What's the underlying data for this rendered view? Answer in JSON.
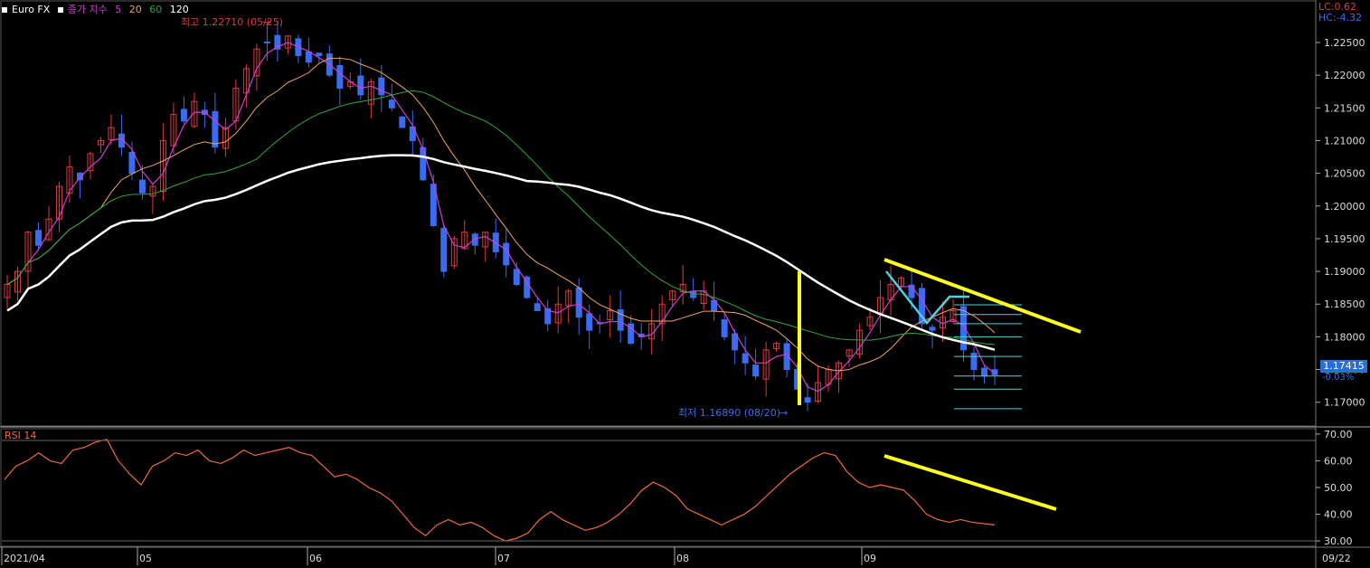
{
  "header": {
    "symbol": "Euro FX",
    "ma_label": "종가 지수",
    "ma_periods": [
      "5",
      "20",
      "60",
      "120"
    ],
    "high_label": "최고 1.22710 (05/25)",
    "low_label": "최저 1.16890 (08/20)",
    "lc": "LC:0.62",
    "hc": "HC:-4.32",
    "current_price": "1.17415",
    "change_pct": "-0.03%"
  },
  "colors": {
    "up": "#e03a3a",
    "down": "#3a6cf0",
    "ma5": "#d23bd6",
    "ma20": "#f0a35a",
    "ma60": "#2fa83a",
    "ma120": "#ffffff",
    "trend": "#ffff1e",
    "fib": "#4fd0e0",
    "rsi": "#f06a3a"
  },
  "chart_data": [
    {
      "type": "candlestick",
      "title": "Euro FX",
      "yticks": [
        "1.22500",
        "1.22000",
        "1.21500",
        "1.21000",
        "1.20500",
        "1.20000",
        "1.19500",
        "1.19000",
        "1.18500",
        "1.18000",
        "1.17500",
        "1.17000"
      ],
      "ylim": [
        1.1665,
        1.2315
      ],
      "xticks": [
        "2021/04",
        "05",
        "06",
        "07",
        "08",
        "09",
        "09/22"
      ],
      "grid": false,
      "high": {
        "value": 1.2271,
        "date": "05/25"
      },
      "low": {
        "value": 1.1689,
        "date": "08/20"
      },
      "close_path": [
        1.188,
        1.19,
        1.196,
        1.194,
        1.198,
        1.203,
        1.206,
        1.204,
        1.208,
        1.21,
        1.212,
        1.209,
        1.205,
        1.202,
        1.203,
        1.21,
        1.214,
        1.213,
        1.216,
        1.214,
        1.209,
        1.212,
        1.218,
        1.221,
        1.224,
        1.225,
        1.224,
        1.226,
        1.223,
        1.222,
        1.223,
        1.22,
        1.218,
        1.219,
        1.217,
        1.219,
        1.217,
        1.215,
        1.212,
        1.21,
        1.204,
        1.197,
        1.19,
        1.195,
        1.196,
        1.194,
        1.196,
        1.193,
        1.191,
        1.188,
        1.186,
        1.184,
        1.182,
        1.185,
        1.187,
        1.183,
        1.181,
        1.182,
        1.184,
        1.181,
        1.179,
        1.18,
        1.182,
        1.185,
        1.187,
        1.188,
        1.186,
        1.187,
        1.184,
        1.18,
        1.178,
        1.176,
        1.174,
        1.178,
        1.179,
        1.175,
        1.172,
        1.17,
        1.173,
        1.175,
        1.176,
        1.178,
        1.181,
        1.183,
        1.186,
        1.188,
        1.189,
        1.186,
        1.182,
        1.181,
        1.183,
        1.184,
        1.178,
        1.175,
        1.174,
        1.1742
      ],
      "series": [
        {
          "name": "5",
          "color": "#d23bd6"
        },
        {
          "name": "20",
          "color": "#f0a35a"
        },
        {
          "name": "60",
          "color": "#2fa83a"
        },
        {
          "name": "120",
          "color": "#ffffff"
        }
      ],
      "annotations": [
        "yellow vertical bar at 08/20 low",
        "yellow descending trendline from September high",
        "cyan retracement levels"
      ]
    },
    {
      "type": "line",
      "title": "RSI 14",
      "yticks": [
        "70.00",
        "60.00",
        "50.00",
        "40.00",
        "30.00"
      ],
      "ylim": [
        28,
        72
      ],
      "series": [
        {
          "name": "RSI 14",
          "values": [
            53,
            58,
            60,
            63,
            60,
            59,
            64,
            65,
            67,
            68,
            60,
            55,
            51,
            58,
            60,
            63,
            62,
            64,
            60,
            59,
            61,
            64,
            62,
            63,
            64,
            65,
            63,
            62,
            58,
            54,
            55,
            53,
            50,
            48,
            45,
            40,
            35,
            32,
            36,
            38,
            36,
            37,
            35,
            32,
            30,
            31,
            33,
            38,
            41,
            38,
            36,
            34,
            35,
            37,
            40,
            44,
            49,
            52,
            50,
            47,
            42,
            40,
            38,
            36,
            38,
            40,
            43,
            47,
            51,
            55,
            58,
            61,
            63,
            62,
            56,
            52,
            50,
            51,
            50,
            49,
            45,
            40,
            38,
            37,
            38,
            37,
            36.5,
            36
          ]
        }
      ]
    }
  ],
  "rsi_label": "RSI 14",
  "trend_note": ""
}
